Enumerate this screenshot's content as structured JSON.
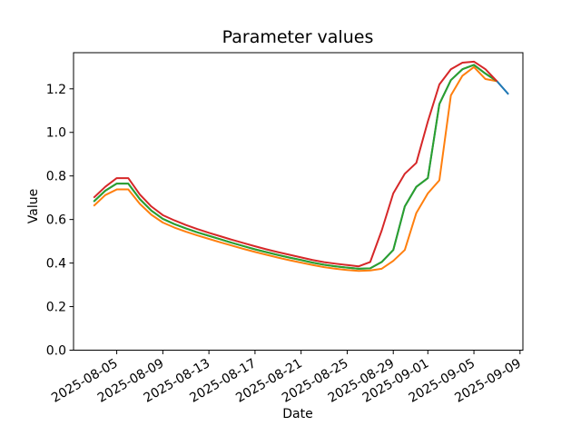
{
  "figure": {
    "title": "Parameter values",
    "xlabel": "Date",
    "ylabel": "Value"
  },
  "chart_data": {
    "type": "line",
    "title": "Parameter values",
    "xlabel": "Date",
    "ylabel": "Value",
    "grid": false,
    "legend": "none",
    "x": [
      "2025-08-03",
      "2025-08-04",
      "2025-08-05",
      "2025-08-06",
      "2025-08-07",
      "2025-08-08",
      "2025-08-09",
      "2025-08-10",
      "2025-08-11",
      "2025-08-12",
      "2025-08-13",
      "2025-08-14",
      "2025-08-15",
      "2025-08-16",
      "2025-08-17",
      "2025-08-18",
      "2025-08-19",
      "2025-08-20",
      "2025-08-21",
      "2025-08-22",
      "2025-08-23",
      "2025-08-24",
      "2025-08-25",
      "2025-08-26",
      "2025-08-27",
      "2025-08-28",
      "2025-08-29",
      "2025-08-30",
      "2025-08-31",
      "2025-09-01",
      "2025-09-02",
      "2025-09-03",
      "2025-09-04",
      "2025-09-05",
      "2025-09-06",
      "2025-09-07",
      "2025-09-08"
    ],
    "series": [
      {
        "name": "blue",
        "color": "#1f77b4",
        "values": [
          0.682,
          0.732,
          0.765,
          0.765,
          0.694,
          0.641,
          0.603,
          0.579,
          0.559,
          0.541,
          0.525,
          0.509,
          0.493,
          0.478,
          0.463,
          0.45,
          0.437,
          0.425,
          0.414,
          0.402,
          0.392,
          0.385,
          0.379,
          0.374,
          0.376,
          0.405,
          0.46,
          0.66,
          0.75,
          0.79,
          1.13,
          1.24,
          1.29,
          1.31,
          1.27,
          1.235,
          1.175
        ]
      },
      {
        "name": "orange",
        "color": "#ff7f0e",
        "values": [
          0.662,
          0.712,
          0.738,
          0.738,
          0.672,
          0.622,
          0.586,
          0.563,
          0.544,
          0.527,
          0.511,
          0.495,
          0.48,
          0.465,
          0.451,
          0.438,
          0.425,
          0.413,
          0.402,
          0.391,
          0.381,
          0.374,
          0.368,
          0.364,
          0.366,
          0.374,
          0.41,
          0.46,
          0.63,
          0.72,
          0.78,
          1.17,
          1.26,
          1.3,
          1.245,
          1.235,
          null
        ]
      },
      {
        "name": "green",
        "color": "#2ca02c",
        "values": [
          0.682,
          0.732,
          0.765,
          0.765,
          0.694,
          0.641,
          0.603,
          0.579,
          0.559,
          0.541,
          0.525,
          0.509,
          0.493,
          0.478,
          0.463,
          0.45,
          0.437,
          0.425,
          0.414,
          0.402,
          0.392,
          0.385,
          0.379,
          0.374,
          0.376,
          0.405,
          0.46,
          0.66,
          0.75,
          0.79,
          1.13,
          1.24,
          1.29,
          1.31,
          1.27,
          1.235,
          null
        ]
      },
      {
        "name": "red",
        "color": "#d62728",
        "values": [
          0.7,
          0.75,
          0.79,
          0.79,
          0.715,
          0.66,
          0.62,
          0.596,
          0.575,
          0.556,
          0.539,
          0.523,
          0.507,
          0.492,
          0.477,
          0.463,
          0.45,
          0.438,
          0.426,
          0.414,
          0.404,
          0.397,
          0.391,
          0.385,
          0.405,
          0.55,
          0.72,
          0.81,
          0.86,
          1.05,
          1.22,
          1.29,
          1.32,
          1.325,
          1.29,
          1.235,
          null
        ]
      }
    ],
    "x_ticks": [
      "2025-08-05",
      "2025-08-09",
      "2025-08-13",
      "2025-08-17",
      "2025-08-21",
      "2025-08-25",
      "2025-08-29",
      "2025-09-01",
      "2025-09-05",
      "2025-09-09"
    ],
    "y_ticks": [
      0.0,
      0.2,
      0.4,
      0.6,
      0.8,
      1.0,
      1.2
    ],
    "ylim": [
      0.0,
      1.366
    ],
    "xlim": [
      "2025-08-01T06:00:00Z",
      "2025-09-09T06:00:00Z"
    ],
    "axis_color": "#000000",
    "line_width": 2
  }
}
